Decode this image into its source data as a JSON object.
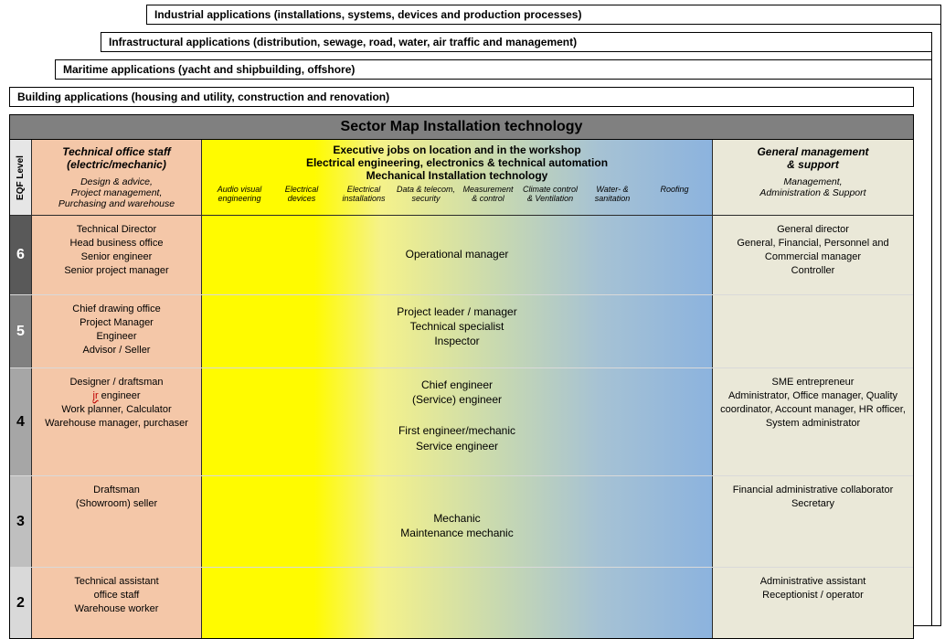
{
  "stack_tabs": [
    "Industrial applications (installations, systems, devices and production processes)",
    "Infrastructural applications (distribution, sewage, road, water, air traffic and management)",
    "Maritime applications (yacht and shipbuilding, offshore)",
    "Building applications (housing and utility, construction and renovation)"
  ],
  "title": "Sector Map Installation technology",
  "eqf_label": "EQF Level",
  "colors": {
    "title_bg": "#808080",
    "tech_bg": "#f4c7a8",
    "mgmt_bg": "#eae8d8",
    "eqf_bg": "#e6e6e6",
    "gradient_stops": [
      "#fffb00",
      "#fffb00",
      "#f5f28a",
      "#c8d9b0",
      "#a6c2d4",
      "#8cb3de"
    ],
    "level_bgs": {
      "6": "#595959",
      "5": "#808080",
      "4": "#a6a6a6",
      "3": "#bfbfbf",
      "2": "#d9d9d9"
    },
    "border": "#2b2b2b",
    "row_divider": "#d9d9d9"
  },
  "header": {
    "tech": {
      "title1": "Technical office staff",
      "title2": "(electric/mechanic)",
      "sub": "Design & advice,\nProject management,\nPurchasing and warehouse"
    },
    "mid": {
      "l1": "Executive jobs on location and in the workshop",
      "l2": "Electrical engineering, electronics & technical automation",
      "l3": "Mechanical Installation technology",
      "disciplines": [
        "Audio visual engineering",
        "Electrical devices",
        "Electrical installations",
        "Data & telecom, security",
        "Measurement & control",
        "Climate control & Ventilation",
        "Water- & sanitation",
        "Roofing"
      ]
    },
    "mgmt": {
      "title1": "General management",
      "title2": "& support",
      "sub": "Management,\nAdministration & Support"
    }
  },
  "rows": [
    {
      "level": "6",
      "tech": "Technical Director\nHead business office\nSenior engineer\nSenior project manager",
      "mid_top": "Operational manager",
      "mgmt": "General director\n \nGeneral, Financial,  Personnel and Commercial manager\nController"
    },
    {
      "level": "5",
      "tech": "Chief drawing office\nProject Manager\nEngineer\nAdvisor / Seller",
      "mid_top": "Project leader / manager\nTechnical specialist\nInspector",
      "mgmt": ""
    },
    {
      "level": "4",
      "tech": "Designer / draftsman\n{jr} engineer\nWork planner, Calculator\nWarehouse manager, purchaser",
      "mid_top": "Chief engineer\n(Service) engineer",
      "mid_bottom": "First engineer/mechanic\nService engineer",
      "mgmt": "SME entrepreneur\nAdministrator, Office manager, Quality coordinator, Account manager, HR officer, System administrator"
    },
    {
      "level": "3",
      "tech": "Draftsman\n(Showroom) seller",
      "mid_bottom": "Mechanic\nMaintenance mechanic",
      "mgmt": "Financial administrative collaborator\nSecretary"
    },
    {
      "level": "2",
      "tech": "Technical assistant\noffice staff\nWarehouse worker",
      "mgmt": "Administrative assistant\nReceptionist / operator"
    }
  ]
}
